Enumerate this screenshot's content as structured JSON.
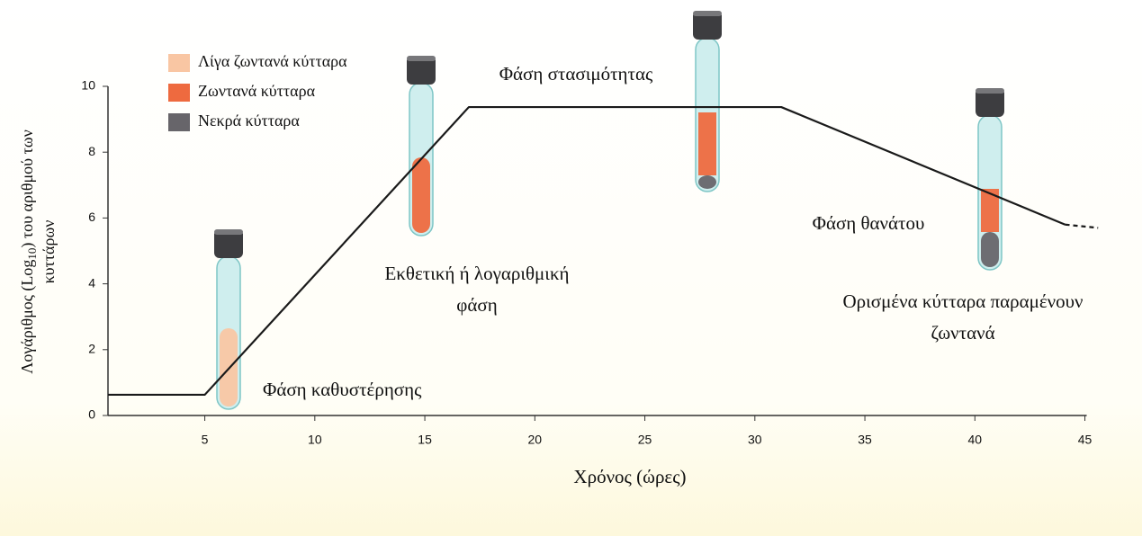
{
  "chart_data": {
    "type": "line",
    "xlabel": "Χρόνος (ώρες)",
    "ylabel": [
      "Λογάριθμος (Log",
      "10",
      ") του αριθμού των",
      "κυττάρων"
    ],
    "x": [
      0.6,
      5,
      17,
      31.2,
      44.1,
      45.6
    ],
    "series": [
      {
        "color": "#1a1a1a",
        "style": "solid",
        "values": [
          0.63,
          0.63,
          9.37,
          9.37,
          5.8,
          null
        ]
      },
      {
        "color": "#1a1a1a",
        "style": "dashed",
        "values": [
          null,
          null,
          null,
          null,
          5.8,
          5.7
        ]
      }
    ],
    "xlim": [
      0.6,
      46
    ],
    "ylim": [
      0,
      10
    ],
    "xticks": [
      5,
      10,
      15,
      20,
      25,
      30,
      35,
      40,
      45
    ],
    "yticks": [
      0,
      2,
      4,
      6,
      8,
      10
    ],
    "legend": [
      {
        "label": "Λίγα ζωντανά κύτταρα",
        "color": "#f9c6a3"
      },
      {
        "label": "Ζωντανά κύτταρα",
        "color": "#ee6a3f"
      },
      {
        "label": "Νεκρά κύτταρα",
        "color": "#67656a"
      }
    ],
    "annotations": [
      [
        "Φάση καθυστέρησης"
      ],
      [
        "Εκθετική ή λογαριθμική",
        "φάση"
      ],
      [
        "Φάση στασιμότητας"
      ],
      [
        "Φάση θανάτου"
      ],
      [
        "Ορισμένα κύτταρα παραμένουν",
        "ζωντανά"
      ]
    ]
  }
}
